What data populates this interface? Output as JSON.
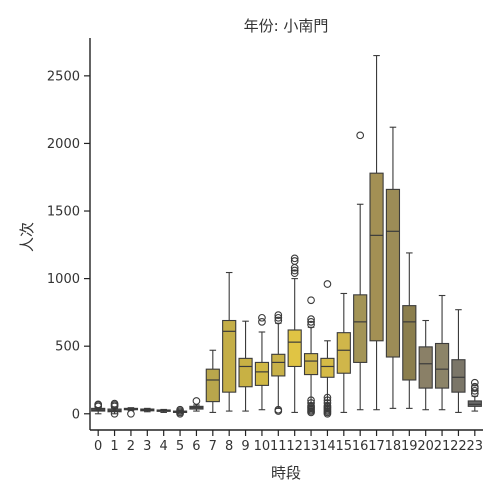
{
  "chart_data": {
    "type": "box",
    "title": "年份: 小南門",
    "xlabel": "時段",
    "ylabel": "人次",
    "categories": [
      "0",
      "1",
      "2",
      "3",
      "4",
      "5",
      "6",
      "7",
      "8",
      "9",
      "10",
      "11",
      "12",
      "13",
      "14",
      "15",
      "16",
      "17",
      "18",
      "19",
      "20",
      "21",
      "22",
      "23"
    ],
    "ylim": [
      -120,
      2780
    ],
    "yticks": [
      0,
      500,
      1000,
      1500,
      2000,
      2500
    ],
    "grid": false,
    "colors": [
      "#5e5e5e",
      "#616161",
      "#5e5e5e",
      "#5e5e5e",
      "#5e5e5e",
      "#5f5f5f",
      "#6e6e6e",
      "#b9a64c",
      "#c4ae47",
      "#c8b144",
      "#d0b844",
      "#c8b148",
      "#e0c444",
      "#cfb64a",
      "#d6bb46",
      "#d0b64a",
      "#a39456",
      "#a39054",
      "#9c8c57",
      "#8b7e4d",
      "#8a8067",
      "#8c8468",
      "#7b7668",
      "#6a6a6a"
    ],
    "boxes": [
      {
        "category": "0",
        "whislo": 0,
        "q1": 20,
        "med": 28,
        "q3": 40,
        "whishi": 45,
        "fliers": [
          55,
          65,
          70
        ]
      },
      {
        "category": "1",
        "whislo": 0,
        "q1": 15,
        "med": 22,
        "q3": 35,
        "whishi": 45,
        "fliers": [
          0,
          55,
          65,
          75
        ]
      },
      {
        "category": "2",
        "whislo": 25,
        "q1": 30,
        "med": 35,
        "q3": 40,
        "whishi": 45,
        "fliers": [
          0
        ]
      },
      {
        "category": "3",
        "whislo": 15,
        "q1": 22,
        "med": 28,
        "q3": 35,
        "whishi": 40,
        "fliers": []
      },
      {
        "category": "4",
        "whislo": 10,
        "q1": 18,
        "med": 22,
        "q3": 28,
        "whishi": 32,
        "fliers": []
      },
      {
        "category": "5",
        "whislo": 5,
        "q1": 10,
        "med": 15,
        "q3": 20,
        "whishi": 25,
        "fliers": [
          0,
          10,
          20,
          30
        ]
      },
      {
        "category": "6",
        "whislo": 20,
        "q1": 35,
        "med": 45,
        "q3": 55,
        "whishi": 65,
        "fliers": [
          95
        ]
      },
      {
        "category": "7",
        "whislo": 10,
        "q1": 90,
        "med": 250,
        "q3": 330,
        "whishi": 470,
        "fliers": []
      },
      {
        "category": "8",
        "whislo": 20,
        "q1": 160,
        "med": 610,
        "q3": 690,
        "whishi": 1045,
        "fliers": []
      },
      {
        "category": "9",
        "whislo": 20,
        "q1": 200,
        "med": 350,
        "q3": 410,
        "whishi": 685,
        "fliers": []
      },
      {
        "category": "10",
        "whislo": 30,
        "q1": 210,
        "med": 310,
        "q3": 380,
        "whishi": 605,
        "fliers": [
          680,
          710
        ]
      },
      {
        "category": "11",
        "whislo": 40,
        "q1": 280,
        "med": 380,
        "q3": 440,
        "whishi": 670,
        "fliers": [
          20,
          30,
          690,
          710,
          730
        ]
      },
      {
        "category": "12",
        "whislo": 10,
        "q1": 350,
        "med": 530,
        "q3": 620,
        "whishi": 1000,
        "fliers": [
          1040,
          1060,
          1080,
          1130,
          1150
        ]
      },
      {
        "category": "13",
        "whislo": 20,
        "q1": 290,
        "med": 390,
        "q3": 445,
        "whishi": 640,
        "fliers": [
          10,
          20,
          30,
          40,
          50,
          60,
          80,
          100,
          660,
          680,
          700,
          840
        ]
      },
      {
        "category": "14",
        "whislo": 20,
        "q1": 270,
        "med": 350,
        "q3": 410,
        "whishi": 540,
        "fliers": [
          0,
          10,
          20,
          30,
          40,
          50,
          60,
          80,
          100,
          120,
          960
        ]
      },
      {
        "category": "15",
        "whislo": 10,
        "q1": 300,
        "med": 470,
        "q3": 600,
        "whishi": 890,
        "fliers": []
      },
      {
        "category": "16",
        "whislo": 30,
        "q1": 380,
        "med": 680,
        "q3": 880,
        "whishi": 1550,
        "fliers": [
          2060
        ]
      },
      {
        "category": "17",
        "whislo": 30,
        "q1": 540,
        "med": 1320,
        "q3": 1780,
        "whishi": 2650,
        "fliers": []
      },
      {
        "category": "18",
        "whislo": 40,
        "q1": 420,
        "med": 1350,
        "q3": 1660,
        "whishi": 2120,
        "fliers": []
      },
      {
        "category": "19",
        "whislo": 40,
        "q1": 250,
        "med": 680,
        "q3": 800,
        "whishi": 1190,
        "fliers": []
      },
      {
        "category": "20",
        "whislo": 30,
        "q1": 190,
        "med": 370,
        "q3": 495,
        "whishi": 690,
        "fliers": []
      },
      {
        "category": "21",
        "whislo": 30,
        "q1": 190,
        "med": 330,
        "q3": 520,
        "whishi": 875,
        "fliers": []
      },
      {
        "category": "22",
        "whislo": 10,
        "q1": 160,
        "med": 270,
        "q3": 400,
        "whishi": 770,
        "fliers": []
      },
      {
        "category": "23",
        "whislo": 20,
        "q1": 55,
        "med": 70,
        "q3": 95,
        "whishi": 130,
        "fliers": [
          150,
          170,
          190,
          200,
          230
        ]
      }
    ]
  }
}
